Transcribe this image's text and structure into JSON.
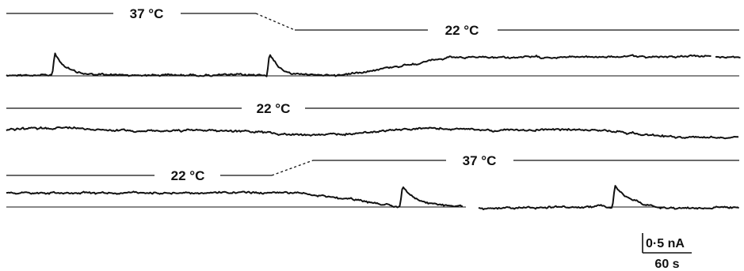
{
  "panels": [
    {
      "segments": [
        {
          "label": "37 °C"
        },
        {
          "label": "22 °C"
        }
      ]
    },
    {
      "segments": [
        {
          "label": "22 °C"
        }
      ]
    },
    {
      "segments": [
        {
          "label": "22 °C"
        },
        {
          "label": "37 °C"
        }
      ]
    }
  ],
  "scale_bar": {
    "current_label": "0·5 nA",
    "time_label": "60 s"
  },
  "colors": {
    "trace": "#111111",
    "background": "#ffffff"
  }
}
